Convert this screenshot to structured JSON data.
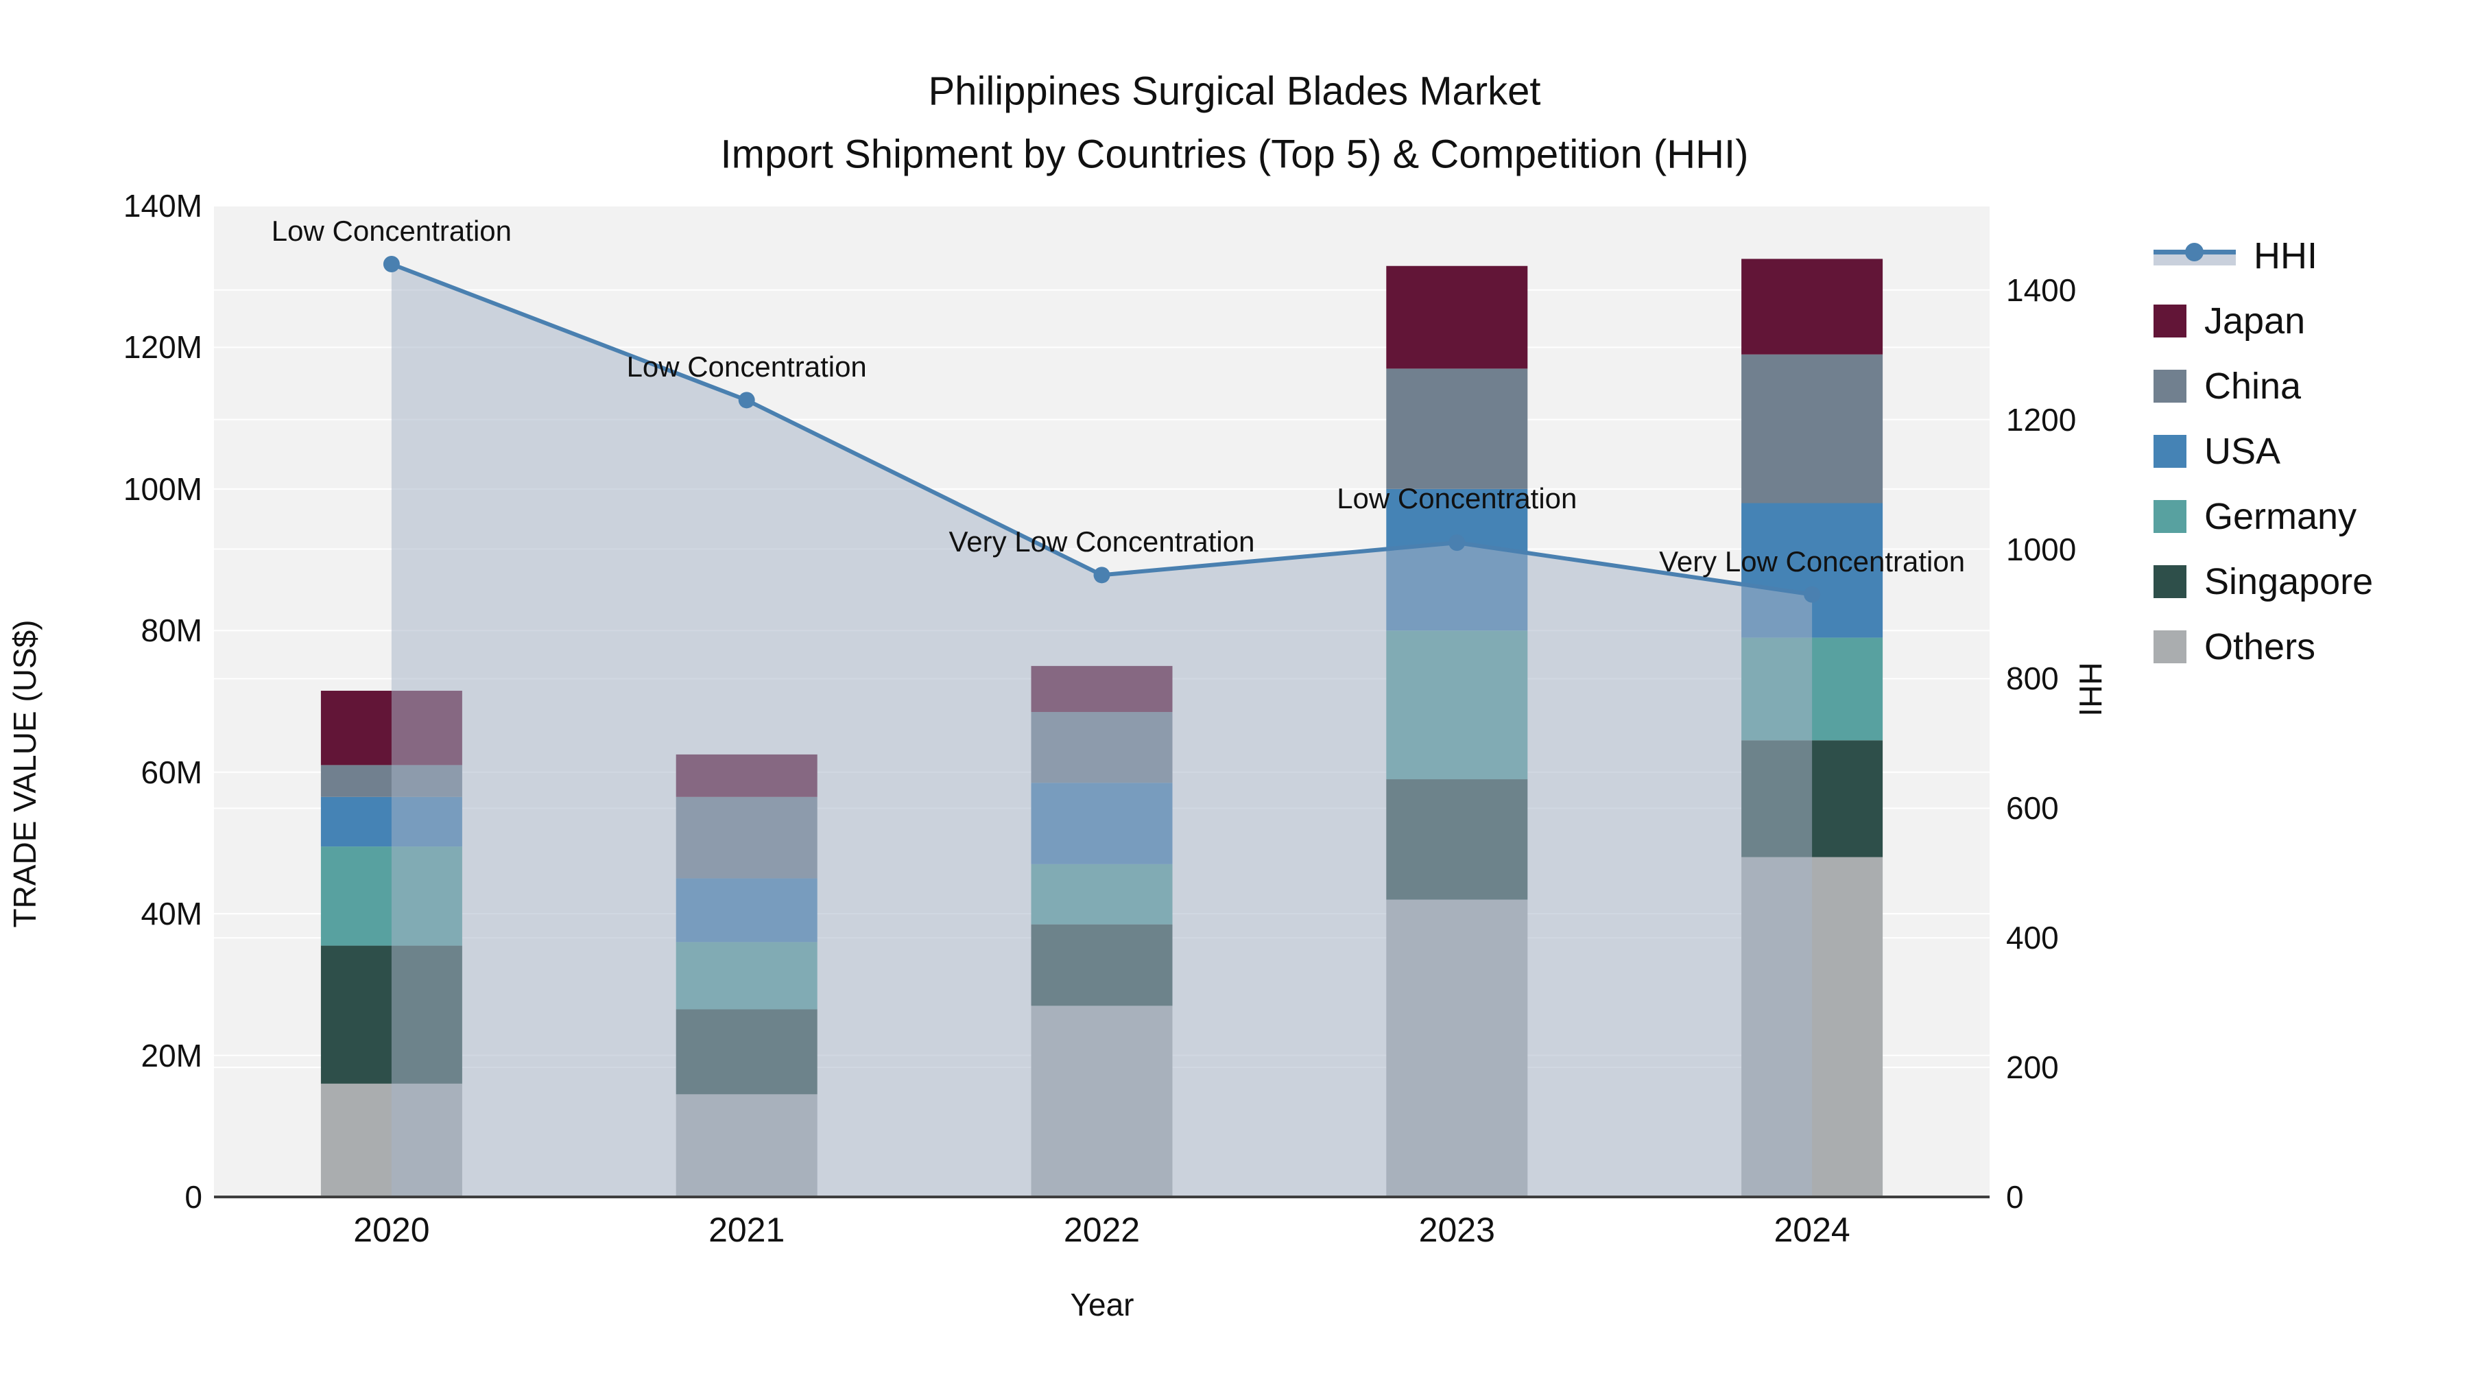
{
  "title": {
    "line1": "Philippines Surgical Blades Market",
    "line2": "Import Shipment by Countries (Top 5) & Competition (HHI)"
  },
  "axes": {
    "left": {
      "title": "TRADE VALUE (US$)",
      "ticks": [
        "0",
        "20M",
        "40M",
        "60M",
        "80M",
        "100M",
        "120M",
        "140M"
      ]
    },
    "right": {
      "title": "HHI",
      "ticks": [
        "0",
        "200",
        "400",
        "600",
        "800",
        "1000",
        "1200",
        "1400"
      ]
    },
    "x": {
      "title": "Year",
      "categories": [
        "2020",
        "2021",
        "2022",
        "2023",
        "2024"
      ]
    }
  },
  "legend": {
    "items": [
      {
        "label": "HHI",
        "type": "line",
        "color": "#4a80b0"
      },
      {
        "label": "Japan",
        "type": "swatch",
        "color": "#621537"
      },
      {
        "label": "China",
        "type": "swatch",
        "color": "#71808f"
      },
      {
        "label": "USA",
        "type": "swatch",
        "color": "#4583b5"
      },
      {
        "label": "Germany",
        "type": "swatch",
        "color": "#58a1a0"
      },
      {
        "label": "Singapore",
        "type": "swatch",
        "color": "#2e4f4a"
      },
      {
        "label": "Others",
        "type": "swatch",
        "color": "#aaadaf"
      }
    ]
  },
  "chart_data": {
    "type": "bar",
    "stacked": true,
    "title": "Philippines Surgical Blades Market — Import Shipment by Countries (Top 5) & Competition (HHI)",
    "xlabel": "Year",
    "ylabel_left": "TRADE VALUE (US$)",
    "ylabel_right": "HHI",
    "unit": "million US$",
    "categories": [
      "2020",
      "2021",
      "2022",
      "2023",
      "2024"
    ],
    "series": [
      {
        "name": "Others",
        "color": "#aaadaf",
        "values": [
          16,
          14.5,
          27,
          42,
          48
        ]
      },
      {
        "name": "Singapore",
        "color": "#2e4f4a",
        "values": [
          19.5,
          12,
          11.5,
          17,
          16.5
        ]
      },
      {
        "name": "Germany",
        "color": "#58a1a0",
        "values": [
          14,
          9.5,
          8.5,
          21,
          14.5
        ]
      },
      {
        "name": "USA",
        "color": "#4583b5",
        "values": [
          7,
          9,
          11.5,
          20,
          19
        ]
      },
      {
        "name": "China",
        "color": "#71808f",
        "values": [
          4.5,
          11.5,
          10,
          17,
          21
        ]
      },
      {
        "name": "Japan",
        "color": "#621537",
        "values": [
          10.5,
          6,
          6.5,
          14.5,
          13.5
        ]
      }
    ],
    "totals": [
      71.5,
      62.5,
      75,
      131.5,
      132.5
    ],
    "line_series": {
      "name": "HHI",
      "axis": "right",
      "color": "#4a80b0",
      "area_color": "rgba(167,181,200,0.52)",
      "values": [
        1440,
        1230,
        960,
        1010,
        930
      ],
      "annotations": [
        "Low Concentration",
        "Low Concentration",
        "Very Low Concentration",
        "Low Concentration",
        "Very Low Concentration"
      ]
    },
    "ylim_left": [
      0,
      140
    ],
    "ylim_right": [
      0,
      1530
    ],
    "grid": true,
    "plot_background": "#f2f2f2",
    "grid_color": "#ffffff",
    "legend_position": "right"
  }
}
